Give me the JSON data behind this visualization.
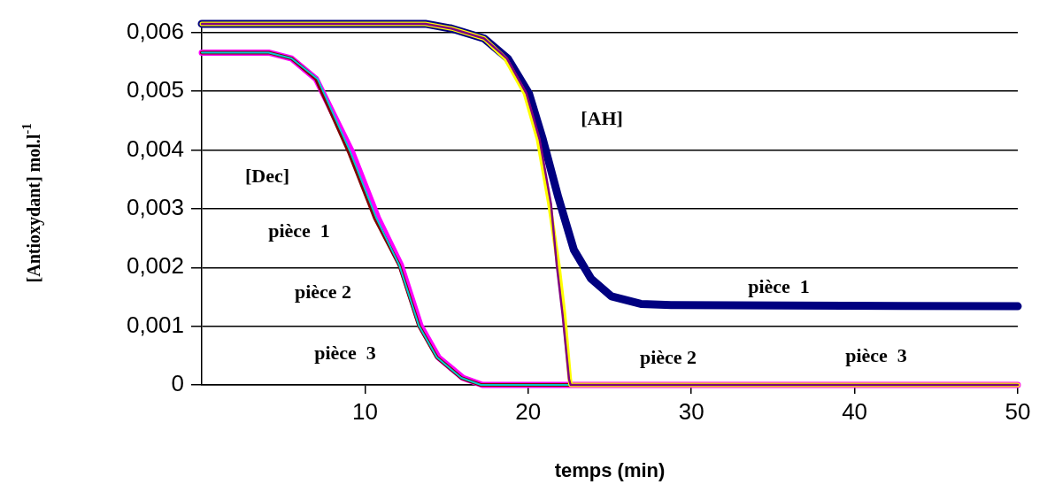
{
  "chart_data": {
    "type": "line",
    "xlabel": "temps (min)",
    "ylabel": "[Antioxydant] mol.l$^{-1}$",
    "xlim": [
      0,
      50
    ],
    "xticks": [
      10,
      20,
      30,
      40,
      50
    ],
    "ylim": [
      0,
      0.0062
    ],
    "yticks": [
      0,
      {
        "value": 0.001,
        "label": "0,001"
      },
      {
        "value": 0.002,
        "label": "0,002"
      },
      {
        "value": 0.003,
        "label": "0,003"
      },
      {
        "value": 0.004,
        "label": "0,004"
      },
      {
        "value": 0.005,
        "label": "0,005"
      },
      {
        "value": 0.006,
        "label": "0,006"
      }
    ],
    "grid": "y",
    "legend": false,
    "marker": "none",
    "series": [
      {
        "color": "#ff00ff",
        "x": [
          0,
          4.1,
          5.5,
          7,
          9.2,
          10.8,
          12.2,
          13.4,
          14.5,
          16,
          17.2,
          50
        ],
        "values": [
          0.00566,
          0.00566,
          0.00556,
          0.00521,
          0.00397,
          0.00284,
          0.00204,
          0.00101,
          0.00047,
          0.00012,
          0,
          0
        ]
      },
      {
        "color": "#800000",
        "x": [
          0,
          4.1,
          5.5,
          7,
          9,
          10.6,
          12.1,
          13.3,
          14.4,
          15.9,
          17.1,
          50
        ],
        "values": [
          0.00566,
          0.00566,
          0.00556,
          0.00521,
          0.00397,
          0.00284,
          0.00204,
          0.00101,
          0.00047,
          0.00012,
          0,
          0
        ]
      },
      {
        "color": "#00cccc",
        "x": [
          0,
          4.1,
          5.5,
          7.1,
          9.1,
          10.7,
          12.1,
          13.3,
          14.4,
          15.9,
          17.1,
          50
        ],
        "values": [
          0.00566,
          0.00566,
          0.00556,
          0.00521,
          0.00397,
          0.00284,
          0.00204,
          0.00101,
          0.00047,
          0.00012,
          0,
          0
        ]
      },
      {
        "color": "#000080",
        "x": [
          0,
          13.7,
          15.3,
          17.3,
          18.75,
          20.05,
          20.9,
          21.85,
          22.8,
          23.85,
          25.1,
          26.9,
          28.75,
          50
        ],
        "values": [
          0.00615,
          0.00615,
          0.00607,
          0.0059,
          0.00556,
          0.00496,
          0.00418,
          0.00319,
          0.0023,
          0.00181,
          0.00151,
          0.00138,
          0.00136,
          0.00134
        ]
      },
      {
        "color": "#ffff00",
        "x": [
          0,
          13.7,
          15.3,
          17.3,
          18.6,
          19.8,
          20.6,
          21.3,
          21.85,
          22.2,
          22.55,
          22.6,
          50
        ],
        "values": [
          0.00615,
          0.00615,
          0.00607,
          0.0059,
          0.00556,
          0.00496,
          0.00418,
          0.00308,
          0.00204,
          0.00121,
          0.0001,
          0,
          0
        ]
      },
      {
        "color": "#800080",
        "x": [
          0,
          13.7,
          15.3,
          17.3,
          18.7,
          19.9,
          20.7,
          21.4,
          21.75,
          22.1,
          22.5,
          22.6,
          50
        ],
        "values": [
          0.00615,
          0.00615,
          0.00607,
          0.0059,
          0.00556,
          0.00496,
          0.00418,
          0.00308,
          0.00204,
          0.00121,
          0.0001,
          0,
          0
        ]
      }
    ],
    "annotations": [
      "[Dec]",
      "pièce  1",
      "pièce 2",
      "pièce  3",
      "[AH]",
      "pièce  1",
      "pièce 2",
      "pièce  3"
    ]
  }
}
